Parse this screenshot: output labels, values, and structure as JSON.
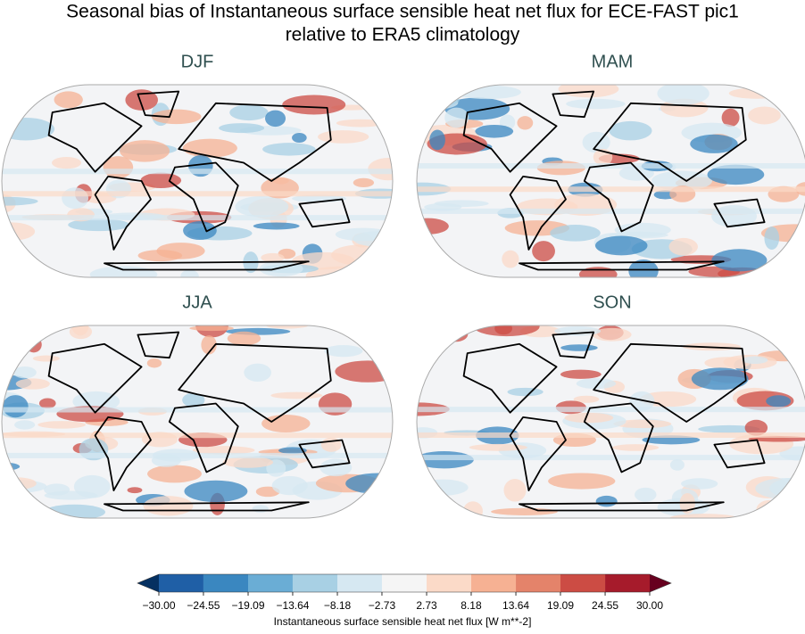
{
  "figure": {
    "title": [
      "Seasonal bias of Instantaneous surface sensible heat net flux for ECE-FAST pic1",
      "relative to ERA5 climatology"
    ],
    "panels": [
      {
        "title": "DJF"
      },
      {
        "title": "MAM"
      },
      {
        "title": "JJA"
      },
      {
        "title": "SON"
      }
    ],
    "colorbar": {
      "label": "Instantaneous surface sensible heat net flux [W m**-2]",
      "lim": [
        -30,
        30
      ],
      "ticks": [
        {
          "value": -30,
          "label": "−30.00"
        },
        {
          "value": -24.55,
          "label": "−24.55"
        },
        {
          "value": -19.09,
          "label": "−19.09"
        },
        {
          "value": -13.64,
          "label": "−13.64"
        },
        {
          "value": -8.18,
          "label": "−8.18"
        },
        {
          "value": -2.73,
          "label": "−2.73"
        },
        {
          "value": 2.73,
          "label": "2.73"
        },
        {
          "value": 8.18,
          "label": "8.18"
        },
        {
          "value": 13.64,
          "label": "13.64"
        },
        {
          "value": 19.09,
          "label": "19.09"
        },
        {
          "value": 24.55,
          "label": "24.55"
        },
        {
          "value": 30,
          "label": "30.00"
        }
      ],
      "colors": [
        "#1f5fa6",
        "#3a87c0",
        "#6aadd5",
        "#a8d0e4",
        "#d6e8f2",
        "#f5f5f5",
        "#fbdac8",
        "#f6b193",
        "#e4836a",
        "#cc4c44",
        "#a61b2b"
      ],
      "extend_colors": [
        "#053061",
        "#67001f"
      ]
    }
  }
}
